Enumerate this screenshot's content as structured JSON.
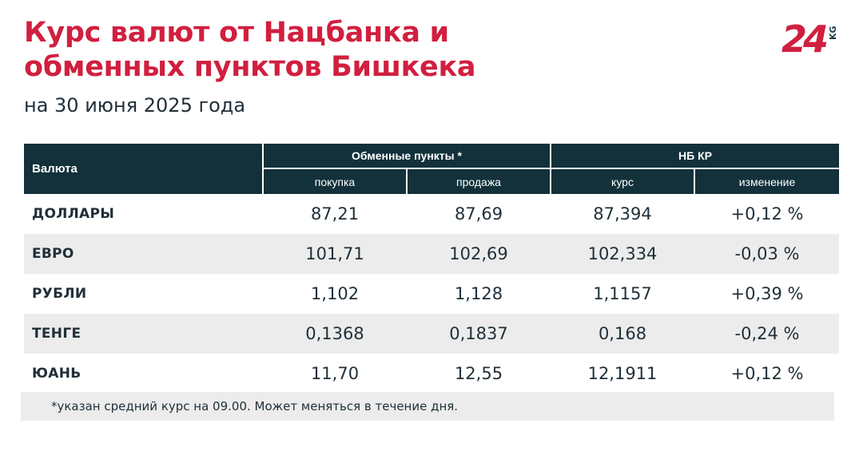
{
  "title_line1": "Курс валют от Нацбанка и",
  "title_line2": "обменных пунктов Бишкека",
  "subtitle": "на 30 июня 2025 года",
  "logo": {
    "number": "24",
    "suffix": "KG"
  },
  "colors": {
    "accent": "#d11f3f",
    "header_bg": "#12313a",
    "row_shade": "#ececec",
    "text": "#1f2f38"
  },
  "table": {
    "currency_header": "Валюта",
    "exchange_group": "Обменные пункты *",
    "nb_group": "НБ КР",
    "sub_headers": [
      "покупка",
      "продажа",
      "курс",
      "изменение"
    ],
    "rows": [
      {
        "name": "ДОЛЛАРЫ",
        "buy": "87,21",
        "sell": "87,69",
        "rate": "87,394",
        "change": "+0,12 %"
      },
      {
        "name": "ЕВРО",
        "buy": "101,71",
        "sell": "102,69",
        "rate": "102,334",
        "change": "-0,03 %"
      },
      {
        "name": "РУБЛИ",
        "buy": "1,102",
        "sell": "1,128",
        "rate": "1,1157",
        "change": "+0,39 %"
      },
      {
        "name": "ТЕНГЕ",
        "buy": "0,1368",
        "sell": "0,1837",
        "rate": "0,168",
        "change": "-0,24 %"
      },
      {
        "name": "ЮАНЬ",
        "buy": "11,70",
        "sell": "12,55",
        "rate": "12,1911",
        "change": "+0,12 %"
      }
    ]
  },
  "footnote": "*указан средний курс на 09.00. Может меняться в течение дня."
}
